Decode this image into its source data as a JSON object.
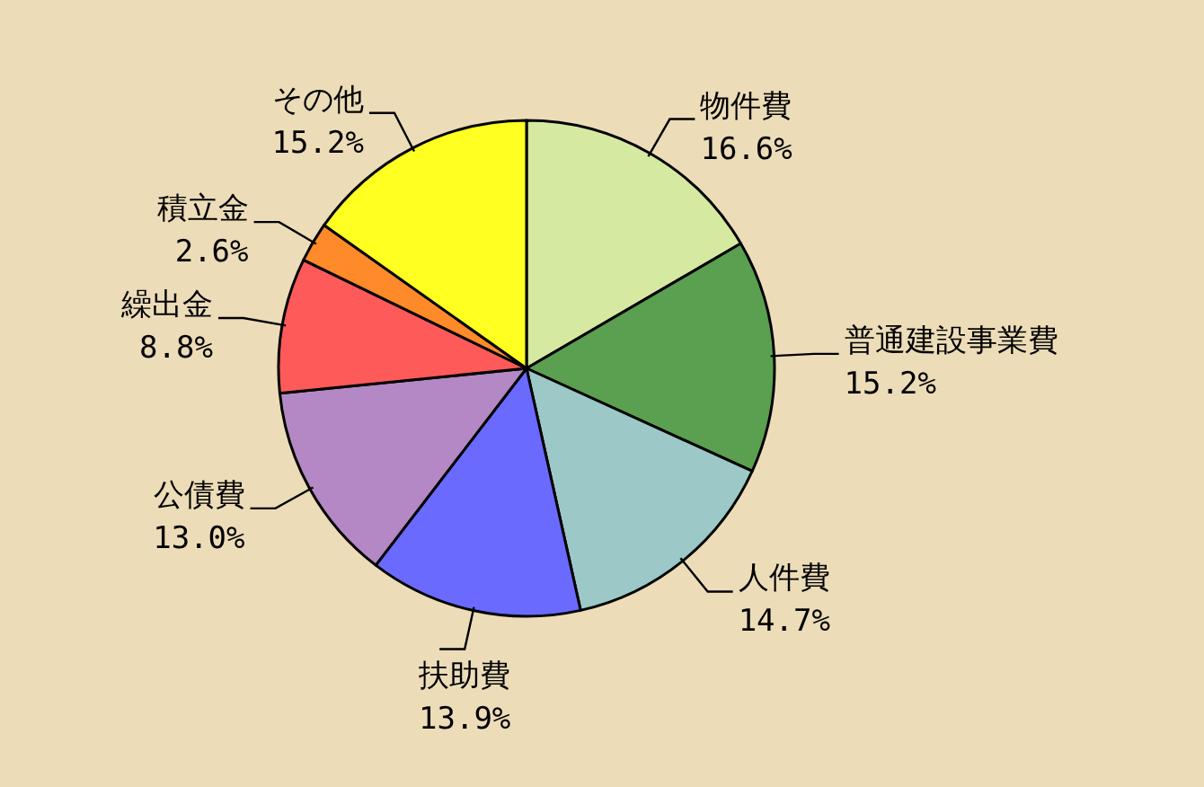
{
  "chart_data": {
    "type": "pie",
    "categories": [
      "物件費",
      "普通建設事業費",
      "人件費",
      "扶助費",
      "公債費",
      "繰出金",
      "積立金",
      "その他"
    ],
    "values": [
      16.6,
      15.2,
      14.7,
      13.9,
      13.0,
      8.8,
      2.6,
      15.2
    ],
    "value_labels": [
      "16.6%",
      "15.2%",
      "14.7%",
      "13.9%",
      "13.0%",
      "8.8%",
      "2.6%",
      "15.2%"
    ],
    "colors": [
      "#d6e9a0",
      "#5aa050",
      "#9cc8c8",
      "#6a6aff",
      "#b488c4",
      "#ff5a5a",
      "#ff8a2a",
      "#ffff22"
    ]
  }
}
